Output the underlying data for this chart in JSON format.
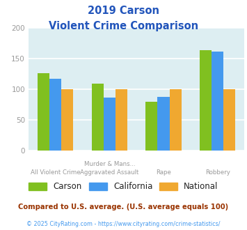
{
  "title_line1": "2019 Carson",
  "title_line2": "Violent Crime Comparison",
  "category_labels_top": [
    "",
    "Murder & Mans...",
    "",
    ""
  ],
  "category_labels_bottom": [
    "All Violent Crime",
    "Aggravated Assault",
    "Rape",
    "Robbery"
  ],
  "series": {
    "Carson": [
      126,
      109,
      79,
      163
    ],
    "California": [
      117,
      86,
      87,
      161
    ],
    "National": [
      100,
      100,
      100,
      100
    ]
  },
  "colors": {
    "Carson": "#80c020",
    "California": "#4499ee",
    "National": "#f0a830"
  },
  "ylim": [
    0,
    200
  ],
  "yticks": [
    0,
    50,
    100,
    150,
    200
  ],
  "title_color": "#2255bb",
  "axis_bg_color": "#ddeef2",
  "fig_bg_color": "#ffffff",
  "grid_color": "#ffffff",
  "tick_label_color": "#999999",
  "legend_labels": [
    "Carson",
    "California",
    "National"
  ],
  "footnote1": "Compared to U.S. average. (U.S. average equals 100)",
  "footnote2": "© 2025 CityRating.com - https://www.cityrating.com/crime-statistics/",
  "footnote1_color": "#993300",
  "footnote2_color": "#4499ee",
  "bar_width": 0.22
}
